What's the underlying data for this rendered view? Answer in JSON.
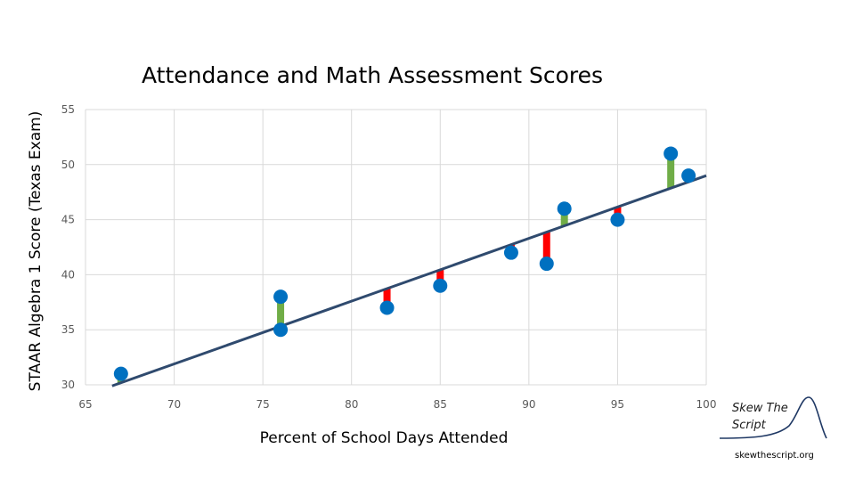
{
  "chart_data": {
    "type": "scatter",
    "title": "Attendance and Math Assessment Scores",
    "xlabel": "Percent of School Days Attended",
    "ylabel": "STAAR Algebra 1 Score (Texas Exam)",
    "xlim": [
      65,
      100
    ],
    "ylim": [
      30,
      55
    ],
    "xticks": [
      65,
      70,
      75,
      80,
      85,
      90,
      95,
      100
    ],
    "yticks": [
      30,
      35,
      40,
      45,
      50,
      55
    ],
    "grid": true,
    "series": [
      {
        "points": [
          {
            "x": 67,
            "y": 31
          },
          {
            "x": 76,
            "y": 38
          },
          {
            "x": 76,
            "y": 35
          },
          {
            "x": 82,
            "y": 37
          },
          {
            "x": 85,
            "y": 39
          },
          {
            "x": 89,
            "y": 42
          },
          {
            "x": 91,
            "y": 41
          },
          {
            "x": 92,
            "y": 46
          },
          {
            "x": 95,
            "y": 45
          },
          {
            "x": 98,
            "y": 51
          },
          {
            "x": 99,
            "y": 49
          }
        ]
      }
    ],
    "trendline": {
      "x": [
        66.5,
        100
      ],
      "y": [
        29.9,
        49
      ]
    },
    "residual_colors": {
      "positive": "#70ad47",
      "negative": "#ff0000"
    },
    "point_color": "#0070c0",
    "line_color": "#2f4a6e"
  },
  "branding": {
    "name_line1": "Skew The",
    "name_line2": "Script",
    "url": "skewthescript.org"
  }
}
